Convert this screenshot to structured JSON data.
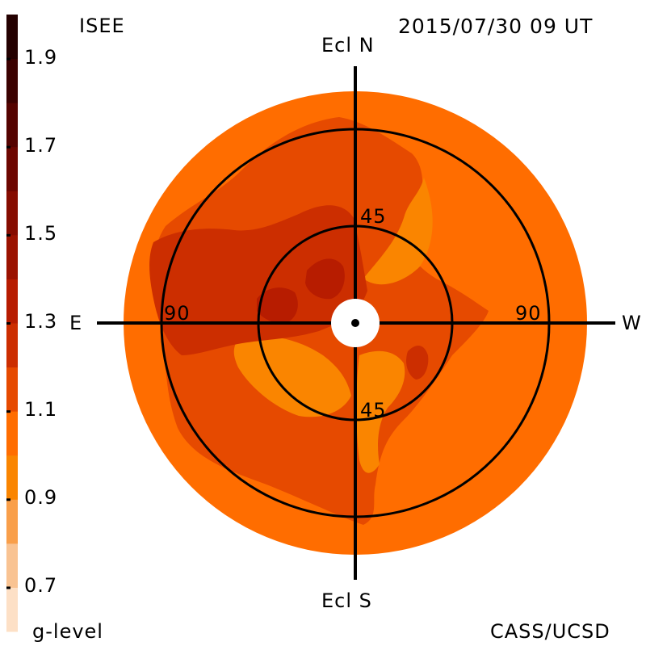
{
  "header": {
    "source_label": "ISEE",
    "timestamp": "2015/07/30 09 UT",
    "credit": "CASS/UCSD"
  },
  "colorbar": {
    "title": "g-level",
    "tick_labels": [
      "1.9",
      "1.7",
      "1.5",
      "1.3",
      "1.1",
      "0.9",
      "0.7"
    ],
    "bands": [
      {
        "from": 0.6,
        "to": 0.7,
        "color": "#fde0c6"
      },
      {
        "from": 0.7,
        "to": 0.8,
        "color": "#f9c392"
      },
      {
        "from": 0.8,
        "to": 0.9,
        "color": "#f99f4a"
      },
      {
        "from": 0.9,
        "to": 1.0,
        "color": "#fa8500"
      },
      {
        "from": 1.0,
        "to": 1.1,
        "color": "#ff6d00"
      },
      {
        "from": 1.1,
        "to": 1.2,
        "color": "#e64a00"
      },
      {
        "from": 1.2,
        "to": 1.3,
        "color": "#cc2e00"
      },
      {
        "from": 1.3,
        "to": 1.4,
        "color": "#b71c00"
      },
      {
        "from": 1.4,
        "to": 1.5,
        "color": "#9b1200"
      },
      {
        "from": 1.5,
        "to": 1.6,
        "color": "#860c00"
      },
      {
        "from": 1.6,
        "to": 1.7,
        "color": "#6d0600"
      },
      {
        "from": 1.7,
        "to": 1.8,
        "color": "#550300"
      },
      {
        "from": 1.8,
        "to": 1.9,
        "color": "#3b0100"
      },
      {
        "from": 1.9,
        "to": 2.0,
        "color": "#240000"
      }
    ]
  },
  "skymap": {
    "axis_labels": {
      "north": "Ecl N",
      "south": "Ecl S",
      "east": "E",
      "west": "W"
    },
    "circle_labels": {
      "inner_north": "45",
      "inner_south": "45",
      "outer_east": "90",
      "outer_west": "90"
    },
    "elongation_circles_deg": [
      45,
      90
    ],
    "colors": {
      "background": "#ff6d00",
      "level_1_0": "#e64a00",
      "level_1_1": "#cc2e00",
      "level_1_3": "#b71c00",
      "level_0_9": "#fa8500",
      "sun_occulter": "#ffffff"
    }
  }
}
